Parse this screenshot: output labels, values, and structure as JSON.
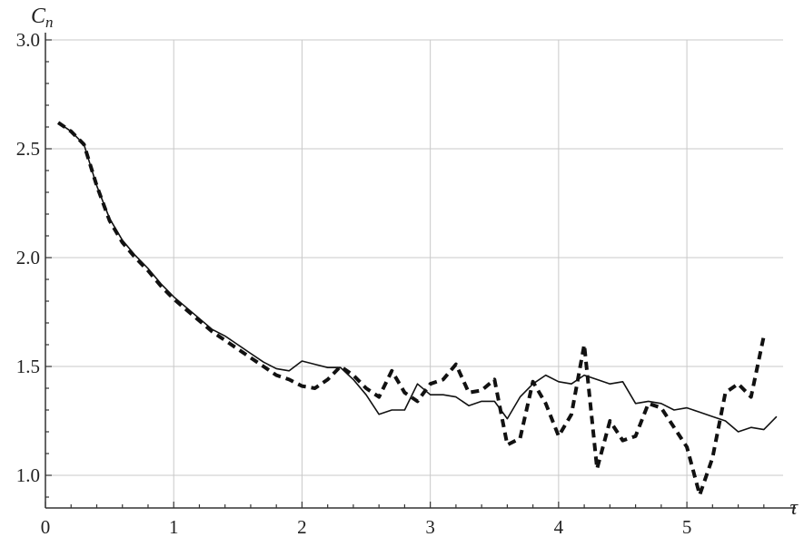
{
  "chart_data": {
    "type": "line",
    "ylabel_main": "C",
    "ylabel_sub": "n",
    "xlabel": "τ",
    "xlim": [
      0,
      5.75
    ],
    "ylim": [
      0.85,
      3.0
    ],
    "grid": true,
    "x_ticks": [
      0,
      1,
      2,
      3,
      4,
      5
    ],
    "x_tick_labels": [
      "0",
      "1",
      "2",
      "3",
      "4",
      "5"
    ],
    "y_ticks": [
      1.0,
      1.5,
      2.0,
      2.5,
      3.0
    ],
    "y_tick_labels": [
      "1.0",
      "1.5",
      "2.0",
      "2.5",
      "3.0"
    ],
    "series": [
      {
        "style": "solid",
        "color": "#111111",
        "points": [
          [
            0.1,
            2.62
          ],
          [
            0.2,
            2.58
          ],
          [
            0.3,
            2.52
          ],
          [
            0.4,
            2.33
          ],
          [
            0.5,
            2.18
          ],
          [
            0.6,
            2.08
          ],
          [
            0.7,
            2.01
          ],
          [
            0.8,
            1.95
          ],
          [
            0.9,
            1.88
          ],
          [
            1.0,
            1.82
          ],
          [
            1.1,
            1.77
          ],
          [
            1.2,
            1.72
          ],
          [
            1.3,
            1.67
          ],
          [
            1.4,
            1.64
          ],
          [
            1.5,
            1.6
          ],
          [
            1.6,
            1.56
          ],
          [
            1.7,
            1.52
          ],
          [
            1.8,
            1.49
          ],
          [
            1.9,
            1.48
          ],
          [
            2.0,
            1.525
          ],
          [
            2.1,
            1.51
          ],
          [
            2.2,
            1.495
          ],
          [
            2.3,
            1.495
          ],
          [
            2.4,
            1.44
          ],
          [
            2.5,
            1.37
          ],
          [
            2.6,
            1.28
          ],
          [
            2.7,
            1.3
          ],
          [
            2.8,
            1.3
          ],
          [
            2.9,
            1.42
          ],
          [
            3.0,
            1.37
          ],
          [
            3.1,
            1.37
          ],
          [
            3.2,
            1.36
          ],
          [
            3.3,
            1.32
          ],
          [
            3.4,
            1.34
          ],
          [
            3.5,
            1.34
          ],
          [
            3.6,
            1.26
          ],
          [
            3.7,
            1.36
          ],
          [
            3.8,
            1.42
          ],
          [
            3.9,
            1.46
          ],
          [
            4.0,
            1.43
          ],
          [
            4.1,
            1.42
          ],
          [
            4.2,
            1.46
          ],
          [
            4.3,
            1.44
          ],
          [
            4.4,
            1.42
          ],
          [
            4.5,
            1.43
          ],
          [
            4.6,
            1.33
          ],
          [
            4.7,
            1.34
          ],
          [
            4.8,
            1.33
          ],
          [
            4.9,
            1.3
          ],
          [
            5.0,
            1.31
          ],
          [
            5.1,
            1.29
          ],
          [
            5.2,
            1.27
          ],
          [
            5.3,
            1.25
          ],
          [
            5.4,
            1.2
          ],
          [
            5.5,
            1.22
          ],
          [
            5.6,
            1.21
          ],
          [
            5.7,
            1.27
          ]
        ]
      },
      {
        "style": "dashed",
        "color": "#111111",
        "points": [
          [
            0.1,
            2.62
          ],
          [
            0.2,
            2.58
          ],
          [
            0.3,
            2.52
          ],
          [
            0.4,
            2.33
          ],
          [
            0.5,
            2.17
          ],
          [
            0.6,
            2.07
          ],
          [
            0.7,
            2.0
          ],
          [
            0.8,
            1.94
          ],
          [
            0.9,
            1.87
          ],
          [
            1.0,
            1.81
          ],
          [
            1.1,
            1.76
          ],
          [
            1.2,
            1.71
          ],
          [
            1.3,
            1.66
          ],
          [
            1.4,
            1.62
          ],
          [
            1.5,
            1.58
          ],
          [
            1.6,
            1.54
          ],
          [
            1.7,
            1.5
          ],
          [
            1.8,
            1.46
          ],
          [
            1.9,
            1.44
          ],
          [
            2.0,
            1.41
          ],
          [
            2.1,
            1.4
          ],
          [
            2.2,
            1.44
          ],
          [
            2.3,
            1.5
          ],
          [
            2.4,
            1.46
          ],
          [
            2.5,
            1.4
          ],
          [
            2.6,
            1.36
          ],
          [
            2.7,
            1.48
          ],
          [
            2.8,
            1.38
          ],
          [
            2.9,
            1.34
          ],
          [
            3.0,
            1.42
          ],
          [
            3.1,
            1.44
          ],
          [
            3.2,
            1.51
          ],
          [
            3.3,
            1.38
          ],
          [
            3.4,
            1.39
          ],
          [
            3.5,
            1.44
          ],
          [
            3.6,
            1.14
          ],
          [
            3.7,
            1.17
          ],
          [
            3.8,
            1.43
          ],
          [
            3.9,
            1.33
          ],
          [
            4.0,
            1.18
          ],
          [
            4.1,
            1.28
          ],
          [
            4.2,
            1.6
          ],
          [
            4.3,
            1.03
          ],
          [
            4.4,
            1.25
          ],
          [
            4.5,
            1.16
          ],
          [
            4.6,
            1.18
          ],
          [
            4.7,
            1.33
          ],
          [
            4.8,
            1.31
          ],
          [
            4.9,
            1.22
          ],
          [
            5.0,
            1.13
          ],
          [
            5.1,
            0.91
          ],
          [
            5.2,
            1.08
          ],
          [
            5.3,
            1.38
          ],
          [
            5.4,
            1.42
          ],
          [
            5.5,
            1.36
          ],
          [
            5.6,
            1.64
          ]
        ]
      }
    ]
  }
}
